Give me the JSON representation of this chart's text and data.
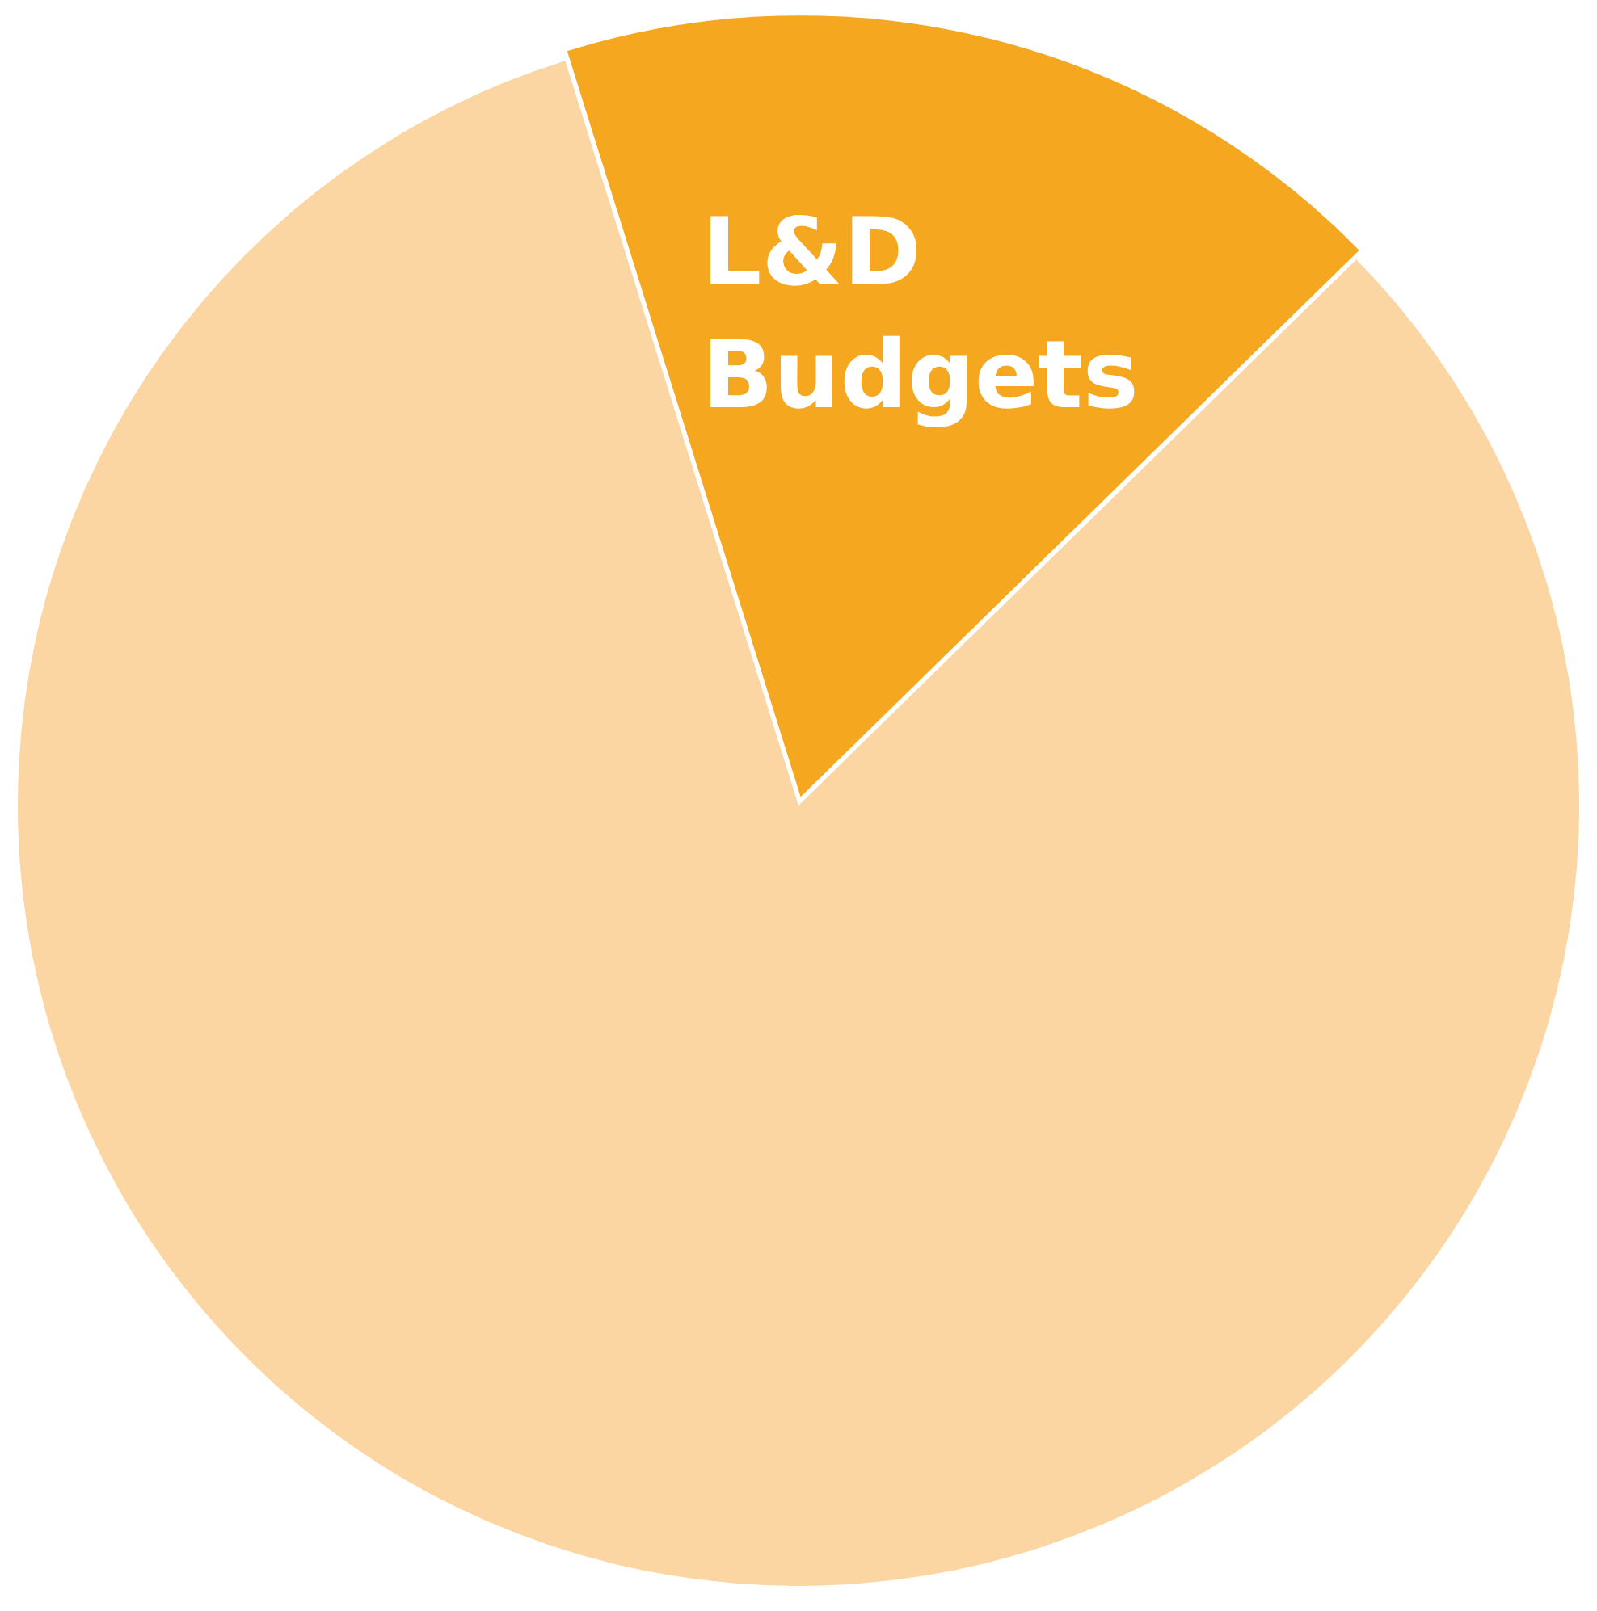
{
  "chart_data": {
    "type": "pie",
    "categories": [
      "L&D Budgets",
      null
    ],
    "values": [
      17.5,
      82.5
    ],
    "colors": [
      "#f4a71f",
      "#fbd6a2"
    ],
    "legend": false
  }
}
